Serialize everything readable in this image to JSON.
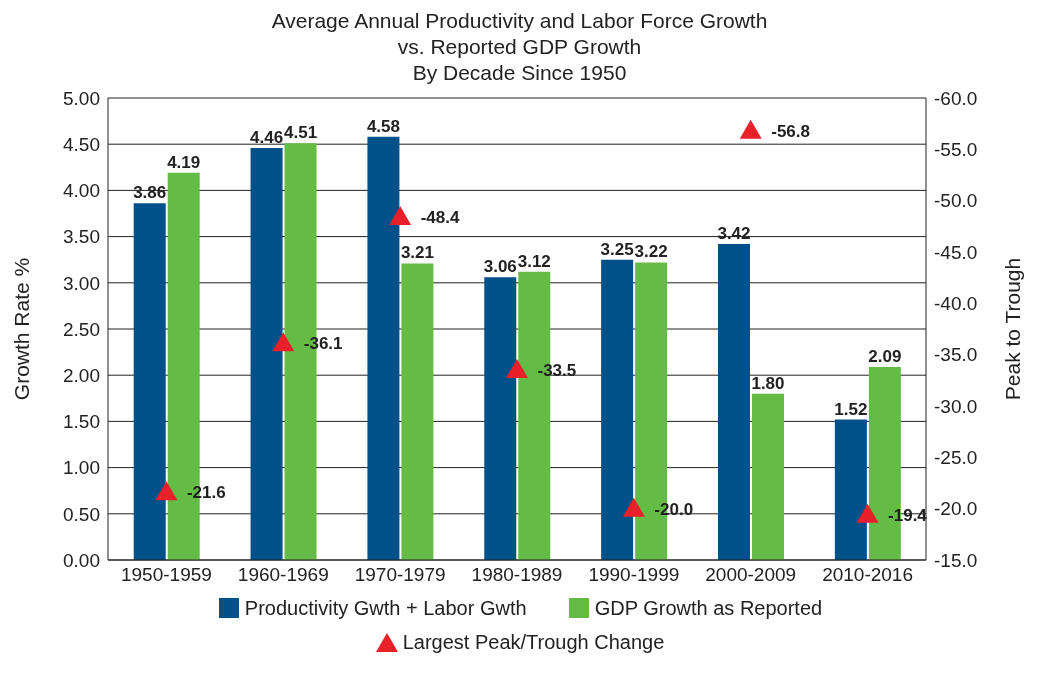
{
  "chart_data": {
    "type": "bar",
    "title": "Average Annual Productivity and Labor Force Growth\nvs. Reported GDP Growth\nBy Decade Since 1950",
    "ylabel": "Growth Rate %",
    "y2label": "Peak to Trough",
    "categories": [
      "1950-1959",
      "1960-1969",
      "1970-1979",
      "1980-1989",
      "1990-1999",
      "2000-2009",
      "2010-2016"
    ],
    "series": [
      {
        "name": "Productivity Gwth + Labor Gwth",
        "color": "#00508a",
        "values": [
          3.86,
          4.46,
          4.58,
          3.06,
          3.25,
          3.42,
          1.52
        ],
        "value_labels": [
          "3.86",
          "4.46",
          "4.58",
          "3.06",
          "3.25",
          "3.42",
          "1.52"
        ]
      },
      {
        "name": "GDP Growth as Reported",
        "color": "#64bb46",
        "values": [
          4.19,
          4.51,
          3.21,
          3.12,
          3.22,
          1.8,
          2.09
        ],
        "value_labels": [
          "4.19",
          "4.51",
          "3.21",
          "3.12",
          "3.22",
          "1.80",
          "2.09"
        ]
      },
      {
        "name": "Largest Peak/Trough Change",
        "type": "scatter",
        "axis": "y2",
        "marker": "triangle",
        "color": "#e8202a",
        "values": [
          -21.6,
          -36.1,
          -48.4,
          -33.5,
          -20.0,
          -56.8,
          -19.4
        ],
        "value_labels": [
          "-21.6",
          "-36.1",
          "-48.4",
          "-33.5",
          "-20.0",
          "-56.8",
          "-19.4"
        ]
      }
    ],
    "ylim": [
      0,
      5
    ],
    "yticks": [
      {
        "value": 0,
        "label": "0.00"
      },
      {
        "value": 0.5,
        "label": "0.50"
      },
      {
        "value": 1,
        "label": "1.00"
      },
      {
        "value": 1.5,
        "label": "1.50"
      },
      {
        "value": 2,
        "label": "2.00"
      },
      {
        "value": 2.5,
        "label": "2.50"
      },
      {
        "value": 3,
        "label": "3.00"
      },
      {
        "value": 3.5,
        "label": "3.50"
      },
      {
        "value": 4,
        "label": "4.00"
      },
      {
        "value": 4.5,
        "label": "4.50"
      },
      {
        "value": 5,
        "label": "5.00"
      }
    ],
    "y2lim": [
      -15,
      -60
    ],
    "y2ticks": [
      {
        "value": -15,
        "label": "-15.0"
      },
      {
        "value": -20,
        "label": "-20.0"
      },
      {
        "value": -25,
        "label": "-25.0"
      },
      {
        "value": -30,
        "label": "-30.0"
      },
      {
        "value": -35,
        "label": "-35.0"
      },
      {
        "value": -40,
        "label": "-40.0"
      },
      {
        "value": -45,
        "label": "-45.0"
      },
      {
        "value": -50,
        "label": "-50.0"
      },
      {
        "value": -55,
        "label": "-55.0"
      },
      {
        "value": -60,
        "label": "-60.0"
      }
    ],
    "grid": "y",
    "legend": "bottom"
  }
}
